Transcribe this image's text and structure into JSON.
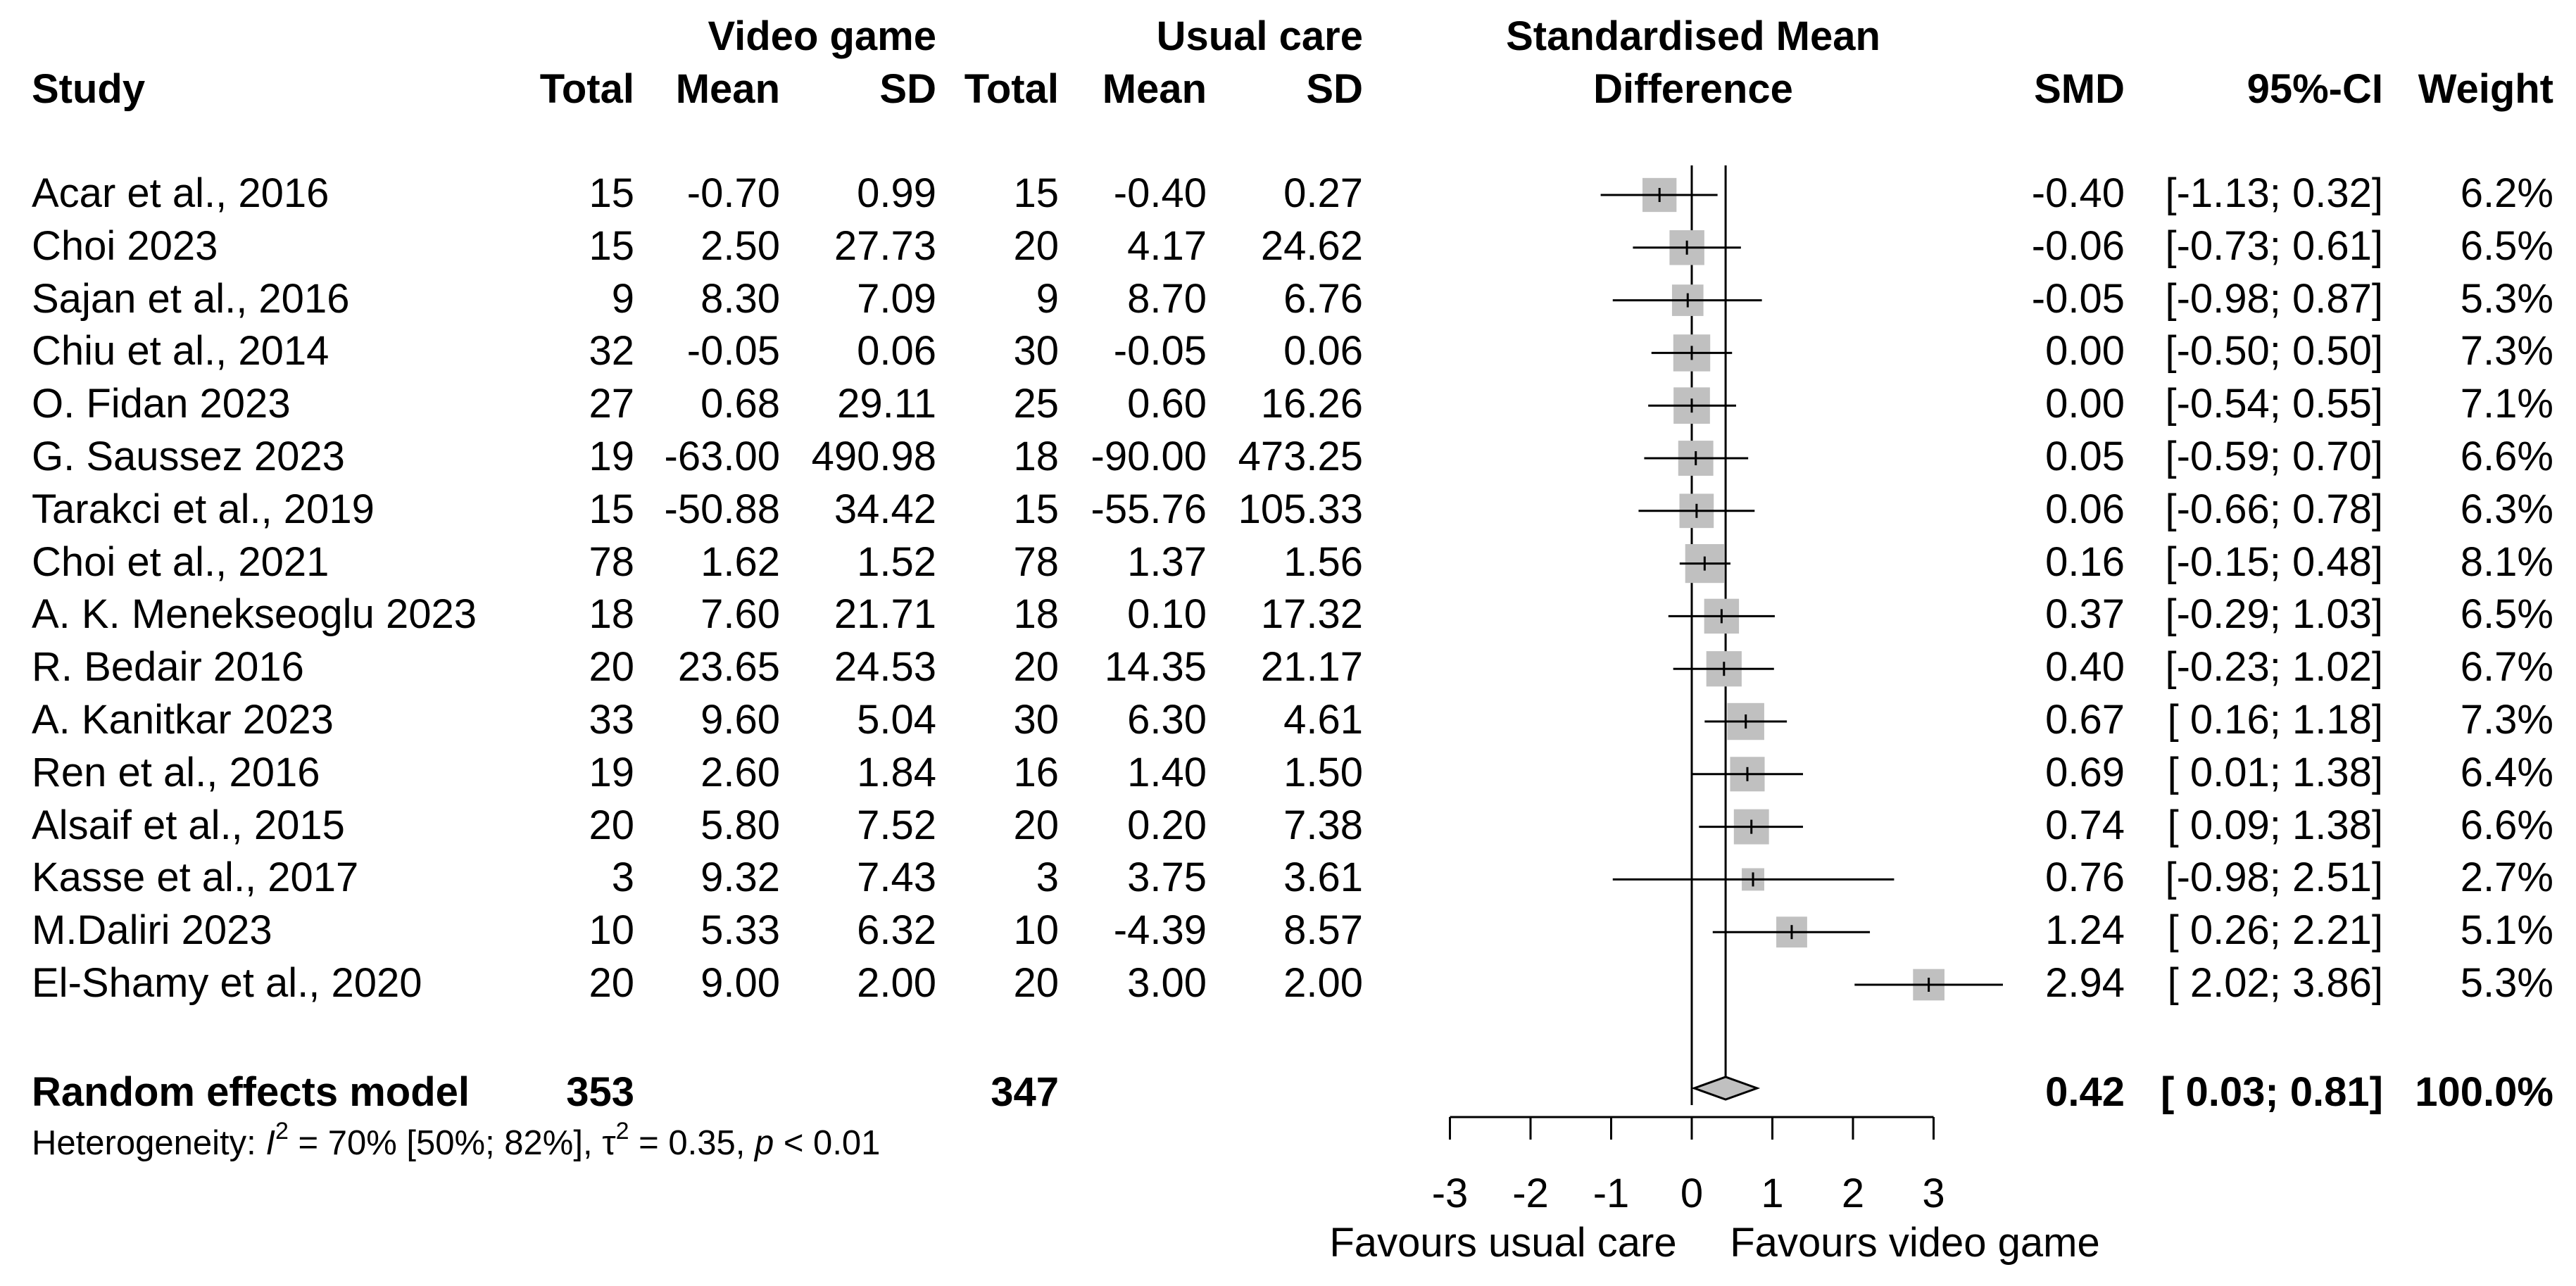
{
  "headers": {
    "study": "Study",
    "group1": "Video game",
    "group2": "Usual care",
    "total": "Total",
    "mean": "Mean",
    "sd": "SD",
    "smd_title_1": "Standardised Mean",
    "smd_title_2": "Difference",
    "smd": "SMD",
    "ci": "95%-CI",
    "weight": "Weight"
  },
  "summary": {
    "label": "Random effects model",
    "total1": "353",
    "total2": "347",
    "smd": "0.42",
    "ci": "[ 0.03; 0.81]",
    "weight": "100.0%"
  },
  "heterogeneity": {
    "prefix": "Heterogeneity: ",
    "i2_symbol": "I",
    "i2_sup": "2",
    "i2_value": " = 70% [50%; 82%], ",
    "tau_symbol": "τ",
    "tau_sup": "2",
    "tau_value": " = 0.35, ",
    "p_symbol": "p",
    "p_value": " < 0.01"
  },
  "axis": {
    "favours_left": "Favours usual care",
    "favours_right": "Favours video game"
  },
  "colors": {
    "box": "#c0c0c0",
    "line": "#000000",
    "diamond": "#c0c0c0"
  },
  "chart_data": {
    "type": "forest",
    "xlim": [
      -3,
      3
    ],
    "xticks": [
      -3,
      -2,
      -1,
      0,
      1,
      2,
      3
    ],
    "null_line": 0,
    "pooled": {
      "smd": 0.42,
      "lower": 0.03,
      "upper": 0.81
    },
    "studies": [
      {
        "name": "Acar et al., 2016",
        "n1": "15",
        "m1": "-0.70",
        "sd1": "0.99",
        "n2": "15",
        "m2": "-0.40",
        "sd2": "0.27",
        "smd": -0.4,
        "lower": -1.13,
        "upper": 0.32,
        "smd_txt": "-0.40",
        "ci_txt": "[-1.13; 0.32]",
        "weight_txt": "6.2%",
        "weight": 6.2
      },
      {
        "name": "Choi 2023",
        "n1": "15",
        "m1": "2.50",
        "sd1": "27.73",
        "n2": "20",
        "m2": "4.17",
        "sd2": "24.62",
        "smd": -0.06,
        "lower": -0.73,
        "upper": 0.61,
        "smd_txt": "-0.06",
        "ci_txt": "[-0.73; 0.61]",
        "weight_txt": "6.5%",
        "weight": 6.5
      },
      {
        "name": "Sajan et al., 2016",
        "n1": "9",
        "m1": "8.30",
        "sd1": "7.09",
        "n2": "9",
        "m2": "8.70",
        "sd2": "6.76",
        "smd": -0.05,
        "lower": -0.98,
        "upper": 0.87,
        "smd_txt": "-0.05",
        "ci_txt": "[-0.98; 0.87]",
        "weight_txt": "5.3%",
        "weight": 5.3
      },
      {
        "name": "Chiu et al., 2014",
        "n1": "32",
        "m1": "-0.05",
        "sd1": "0.06",
        "n2": "30",
        "m2": "-0.05",
        "sd2": "0.06",
        "smd": 0.0,
        "lower": -0.5,
        "upper": 0.5,
        "smd_txt": "0.00",
        "ci_txt": "[-0.50; 0.50]",
        "weight_txt": "7.3%",
        "weight": 7.3
      },
      {
        "name": "O. Fidan 2023",
        "n1": "27",
        "m1": "0.68",
        "sd1": "29.11",
        "n2": "25",
        "m2": "0.60",
        "sd2": "16.26",
        "smd": 0.0,
        "lower": -0.54,
        "upper": 0.55,
        "smd_txt": "0.00",
        "ci_txt": "[-0.54; 0.55]",
        "weight_txt": "7.1%",
        "weight": 7.1
      },
      {
        "name": "G. Saussez 2023",
        "n1": "19",
        "m1": "-63.00",
        "sd1": "490.98",
        "n2": "18",
        "m2": "-90.00",
        "sd2": "473.25",
        "smd": 0.05,
        "lower": -0.59,
        "upper": 0.7,
        "smd_txt": "0.05",
        "ci_txt": "[-0.59; 0.70]",
        "weight_txt": "6.6%",
        "weight": 6.6
      },
      {
        "name": "Tarakci et al., 2019",
        "n1": "15",
        "m1": "-50.88",
        "sd1": "34.42",
        "n2": "15",
        "m2": "-55.76",
        "sd2": "105.33",
        "smd": 0.06,
        "lower": -0.66,
        "upper": 0.78,
        "smd_txt": "0.06",
        "ci_txt": "[-0.66; 0.78]",
        "weight_txt": "6.3%",
        "weight": 6.3
      },
      {
        "name": "Choi et al., 2021",
        "n1": "78",
        "m1": "1.62",
        "sd1": "1.52",
        "n2": "78",
        "m2": "1.37",
        "sd2": "1.56",
        "smd": 0.16,
        "lower": -0.15,
        "upper": 0.48,
        "smd_txt": "0.16",
        "ci_txt": "[-0.15; 0.48]",
        "weight_txt": "8.1%",
        "weight": 8.1
      },
      {
        "name": "A. K. Menekseoglu 2023",
        "n1": "18",
        "m1": "7.60",
        "sd1": "21.71",
        "n2": "18",
        "m2": "0.10",
        "sd2": "17.32",
        "smd": 0.37,
        "lower": -0.29,
        "upper": 1.03,
        "smd_txt": "0.37",
        "ci_txt": "[-0.29; 1.03]",
        "weight_txt": "6.5%",
        "weight": 6.5
      },
      {
        "name": "R. Bedair 2016",
        "n1": "20",
        "m1": "23.65",
        "sd1": "24.53",
        "n2": "20",
        "m2": "14.35",
        "sd2": "21.17",
        "smd": 0.4,
        "lower": -0.23,
        "upper": 1.02,
        "smd_txt": "0.40",
        "ci_txt": "[-0.23; 1.02]",
        "weight_txt": "6.7%",
        "weight": 6.7
      },
      {
        "name": "A. Kanitkar 2023",
        "n1": "33",
        "m1": "9.60",
        "sd1": "5.04",
        "n2": "30",
        "m2": "6.30",
        "sd2": "4.61",
        "smd": 0.67,
        "lower": 0.16,
        "upper": 1.18,
        "smd_txt": "0.67",
        "ci_txt": "[ 0.16; 1.18]",
        "weight_txt": "7.3%",
        "weight": 7.3
      },
      {
        "name": "Ren et al., 2016",
        "n1": "19",
        "m1": "2.60",
        "sd1": "1.84",
        "n2": "16",
        "m2": "1.40",
        "sd2": "1.50",
        "smd": 0.69,
        "lower": 0.01,
        "upper": 1.38,
        "smd_txt": "0.69",
        "ci_txt": "[ 0.01; 1.38]",
        "weight_txt": "6.4%",
        "weight": 6.4
      },
      {
        "name": "Alsaif et al., 2015",
        "n1": "20",
        "m1": "5.80",
        "sd1": "7.52",
        "n2": "20",
        "m2": "0.20",
        "sd2": "7.38",
        "smd": 0.74,
        "lower": 0.09,
        "upper": 1.38,
        "smd_txt": "0.74",
        "ci_txt": "[ 0.09; 1.38]",
        "weight_txt": "6.6%",
        "weight": 6.6
      },
      {
        "name": "Kasse et al., 2017",
        "n1": "3",
        "m1": "9.32",
        "sd1": "7.43",
        "n2": "3",
        "m2": "3.75",
        "sd2": "3.61",
        "smd": 0.76,
        "lower": -0.98,
        "upper": 2.51,
        "smd_txt": "0.76",
        "ci_txt": "[-0.98; 2.51]",
        "weight_txt": "2.7%",
        "weight": 2.7
      },
      {
        "name": "M.Daliri 2023",
        "n1": "10",
        "m1": "5.33",
        "sd1": "6.32",
        "n2": "10",
        "m2": "-4.39",
        "sd2": "8.57",
        "smd": 1.24,
        "lower": 0.26,
        "upper": 2.21,
        "smd_txt": "1.24",
        "ci_txt": "[ 0.26; 2.21]",
        "weight_txt": "5.1%",
        "weight": 5.1
      },
      {
        "name": "El-Shamy et al., 2020",
        "n1": "20",
        "m1": "9.00",
        "sd1": "2.00",
        "n2": "20",
        "m2": "3.00",
        "sd2": "2.00",
        "smd": 2.94,
        "lower": 2.02,
        "upper": 3.86,
        "smd_txt": "2.94",
        "ci_txt": "[ 2.02; 3.86]",
        "weight_txt": "5.3%",
        "weight": 5.3
      }
    ]
  }
}
